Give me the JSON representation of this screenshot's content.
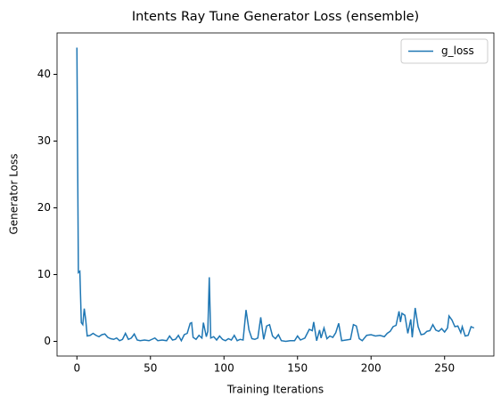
{
  "chart_data": {
    "type": "line",
    "title": "Intents Ray Tune Generator Loss (ensemble)",
    "x_label": "Training Iterations",
    "y_label": "Generator Loss",
    "legend": "upper right",
    "xlim": [
      -13.5,
      283.5
    ],
    "ylim": [
      -2.2,
      46.2
    ],
    "xticks": [
      0,
      50,
      100,
      150,
      200,
      250
    ],
    "yticks": [
      0,
      10,
      20,
      30,
      40
    ],
    "x": [
      0,
      1,
      2,
      3,
      4,
      5,
      6,
      7,
      9,
      11,
      13,
      15,
      17,
      19,
      21,
      23,
      25,
      27,
      29,
      31,
      33,
      35,
      37,
      39,
      41,
      43,
      46,
      49,
      51,
      53,
      55,
      58,
      61,
      63,
      65,
      67,
      69,
      71,
      73,
      75,
      77,
      78,
      79,
      81,
      83,
      85,
      86,
      88,
      89,
      90,
      91,
      93,
      95,
      97,
      99,
      101,
      103,
      105,
      107,
      109,
      111,
      113,
      115,
      117,
      119,
      121,
      123,
      125,
      127,
      129,
      131,
      133,
      135,
      137,
      139,
      142,
      145,
      148,
      150,
      152,
      155,
      158,
      160,
      161,
      163,
      165,
      166,
      168,
      170,
      172,
      174,
      176,
      178,
      180,
      183,
      186,
      188,
      190,
      192,
      194,
      197,
      200,
      203,
      206,
      209,
      211,
      213,
      215,
      217,
      219,
      220,
      221,
      223,
      225,
      227,
      228,
      230,
      232,
      234,
      236,
      238,
      240,
      242,
      244,
      246,
      248,
      250,
      252,
      253,
      255,
      257,
      259,
      261,
      262,
      264,
      266,
      268,
      270
    ],
    "series": [
      {
        "name": "g_loss",
        "color": "#1f77b4",
        "values": [
          44,
          10.3,
          10.5,
          2.8,
          2.5,
          4.9,
          3.2,
          0.8,
          0.9,
          1.2,
          0.9,
          0.7,
          1.0,
          1.1,
          0.6,
          0.4,
          0.3,
          0.5,
          0.1,
          0.3,
          1.2,
          0.3,
          0.5,
          1.1,
          0.2,
          0.1,
          0.2,
          0.1,
          0.3,
          0.5,
          0.1,
          0.2,
          0.1,
          0.8,
          0.2,
          0.3,
          0.9,
          0.1,
          1.0,
          1.2,
          2.7,
          2.8,
          0.6,
          0.3,
          0.9,
          0.5,
          2.8,
          0.7,
          1.5,
          9.6,
          0.5,
          0.7,
          0.2,
          0.8,
          0.3,
          0.1,
          0.4,
          0.2,
          0.9,
          0.1,
          0.3,
          0.2,
          4.7,
          1.7,
          0.4,
          0.3,
          0.5,
          3.6,
          0.3,
          2.3,
          2.5,
          0.8,
          0.4,
          1.0,
          0.1,
          0.0,
          0.1,
          0.1,
          0.8,
          0.2,
          0.5,
          1.8,
          1.6,
          2.9,
          0.1,
          1.7,
          0.5,
          2.0,
          0.4,
          0.8,
          0.6,
          1.3,
          2.7,
          0.1,
          0.2,
          0.3,
          2.5,
          2.3,
          0.4,
          0.1,
          0.9,
          1.0,
          0.8,
          0.9,
          0.7,
          1.2,
          1.5,
          2.2,
          2.4,
          4.5,
          2.9,
          4.2,
          3.9,
          1.2,
          3.3,
          0.6,
          5.0,
          2.2,
          1.0,
          1.1,
          1.5,
          1.6,
          2.5,
          1.7,
          1.5,
          1.9,
          1.4,
          2.0,
          3.8,
          3.2,
          2.2,
          2.3,
          1.3,
          2.2,
          0.8,
          0.9,
          2.2,
          2.0
        ]
      }
    ]
  }
}
